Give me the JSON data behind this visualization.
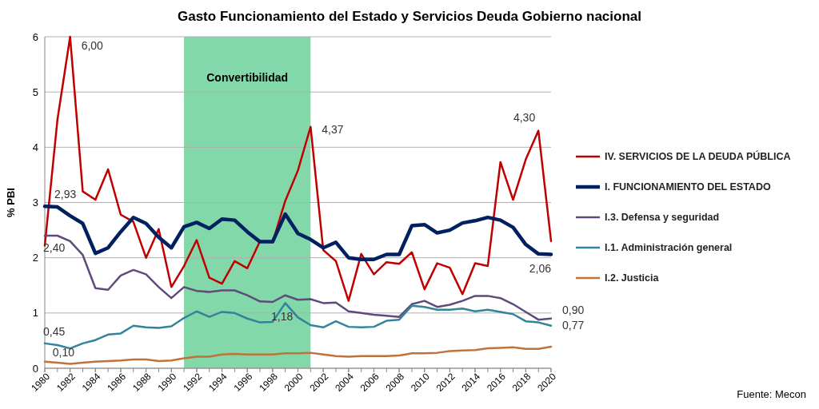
{
  "chart_data": {
    "type": "line",
    "title": "Gasto Funcionamiento del Estado y Servicios Deuda Gobierno nacional",
    "ylabel": "% PBI",
    "x": [
      1980,
      1981,
      1982,
      1983,
      1984,
      1985,
      1986,
      1987,
      1988,
      1989,
      1990,
      1991,
      1992,
      1993,
      1994,
      1995,
      1996,
      1997,
      1998,
      1999,
      2000,
      2001,
      2002,
      2003,
      2004,
      2005,
      2006,
      2007,
      2008,
      2009,
      2010,
      2011,
      2012,
      2013,
      2014,
      2015,
      2016,
      2017,
      2018,
      2019,
      2020
    ],
    "series": [
      {
        "name": "IV. SERVICIOS DE LA DEUDA PÚBLICA",
        "color": "#c00000",
        "values": [
          2.22,
          4.5,
          6.0,
          3.2,
          3.05,
          3.6,
          2.78,
          2.65,
          2.0,
          2.52,
          1.47,
          1.85,
          2.32,
          1.64,
          1.53,
          1.94,
          1.81,
          2.3,
          2.28,
          3.03,
          3.58,
          4.37,
          2.14,
          1.94,
          1.22,
          2.07,
          1.7,
          1.92,
          1.89,
          2.1,
          1.43,
          1.9,
          1.82,
          1.34,
          1.9,
          1.85,
          3.73,
          3.05,
          3.78,
          4.3,
          2.3
        ]
      },
      {
        "name": "I. FUNCIONAMIENTO DEL ESTADO",
        "color": "#002060",
        "values": [
          2.93,
          2.92,
          2.76,
          2.62,
          2.08,
          2.18,
          2.47,
          2.73,
          2.62,
          2.37,
          2.18,
          2.56,
          2.64,
          2.53,
          2.7,
          2.68,
          2.47,
          2.29,
          2.29,
          2.79,
          2.44,
          2.33,
          2.18,
          2.28,
          2.0,
          1.97,
          1.97,
          2.06,
          2.06,
          2.58,
          2.6,
          2.45,
          2.5,
          2.63,
          2.67,
          2.73,
          2.68,
          2.55,
          2.24,
          2.07,
          2.06
        ]
      },
      {
        "name": "I.3. Defensa y seguridad",
        "color": "#604a7b",
        "values": [
          2.4,
          2.4,
          2.3,
          2.05,
          1.45,
          1.42,
          1.68,
          1.78,
          1.7,
          1.47,
          1.27,
          1.47,
          1.4,
          1.38,
          1.41,
          1.41,
          1.32,
          1.21,
          1.2,
          1.32,
          1.24,
          1.25,
          1.18,
          1.19,
          1.03,
          1.0,
          0.97,
          0.95,
          0.93,
          1.16,
          1.22,
          1.11,
          1.15,
          1.22,
          1.31,
          1.31,
          1.27,
          1.16,
          1.02,
          0.88,
          0.9
        ]
      },
      {
        "name": "I.1. Administración general",
        "color": "#31849b",
        "values": [
          0.45,
          0.42,
          0.36,
          0.45,
          0.51,
          0.61,
          0.63,
          0.77,
          0.74,
          0.73,
          0.76,
          0.91,
          1.03,
          0.93,
          1.02,
          1.0,
          0.9,
          0.83,
          0.84,
          1.18,
          0.92,
          0.78,
          0.74,
          0.85,
          0.75,
          0.74,
          0.75,
          0.86,
          0.88,
          1.13,
          1.11,
          1.06,
          1.06,
          1.08,
          1.03,
          1.06,
          1.02,
          0.98,
          0.85,
          0.83,
          0.77
        ]
      },
      {
        "name": "I.2. Justicia",
        "color": "#c0723b",
        "values": [
          0.12,
          0.1,
          0.08,
          0.1,
          0.12,
          0.13,
          0.14,
          0.16,
          0.16,
          0.13,
          0.14,
          0.18,
          0.21,
          0.21,
          0.25,
          0.26,
          0.25,
          0.25,
          0.25,
          0.27,
          0.27,
          0.28,
          0.25,
          0.22,
          0.21,
          0.22,
          0.22,
          0.22,
          0.23,
          0.27,
          0.27,
          0.28,
          0.31,
          0.32,
          0.33,
          0.36,
          0.37,
          0.38,
          0.35,
          0.35,
          0.39
        ]
      }
    ],
    "xlim": [
      1980,
      2020
    ],
    "xticks": [
      1980,
      1982,
      1984,
      1986,
      1988,
      1990,
      1992,
      1994,
      1996,
      1998,
      2000,
      2002,
      2004,
      2006,
      2008,
      2010,
      2012,
      2014,
      2016,
      2018,
      2020
    ],
    "ylim": [
      0,
      6
    ],
    "yticks": [
      0,
      1,
      2,
      3,
      4,
      5,
      6
    ],
    "grid": "y",
    "legend": "right",
    "marker": "none",
    "line_style": "solid",
    "bands": [
      {
        "axis": "x",
        "from": 1991,
        "to": 2001,
        "label": "Convertibilidad",
        "color": "#82d8a8"
      }
    ],
    "annotations": [
      {
        "text": "6,00",
        "x": 1982,
        "y": 6.0
      },
      {
        "text": "4,37",
        "x": 2001,
        "y": 4.37
      },
      {
        "text": "4,30",
        "x": 2019,
        "y": 4.3
      },
      {
        "text": "2,93",
        "x": 1980,
        "y": 2.93
      },
      {
        "text": "2,06",
        "x": 2020,
        "y": 2.06
      },
      {
        "text": "2,40",
        "x": 1980,
        "y": 2.4
      },
      {
        "text": "0,90",
        "x": 2020,
        "y": 0.9
      },
      {
        "text": "0,45",
        "x": 1980,
        "y": 0.45
      },
      {
        "text": "1,18",
        "x": 1999,
        "y": 1.18
      },
      {
        "text": "0,77",
        "x": 2020,
        "y": 0.77
      },
      {
        "text": "0,10",
        "x": 1981,
        "y": 0.1
      },
      "Fuente: Mecon"
    ]
  }
}
